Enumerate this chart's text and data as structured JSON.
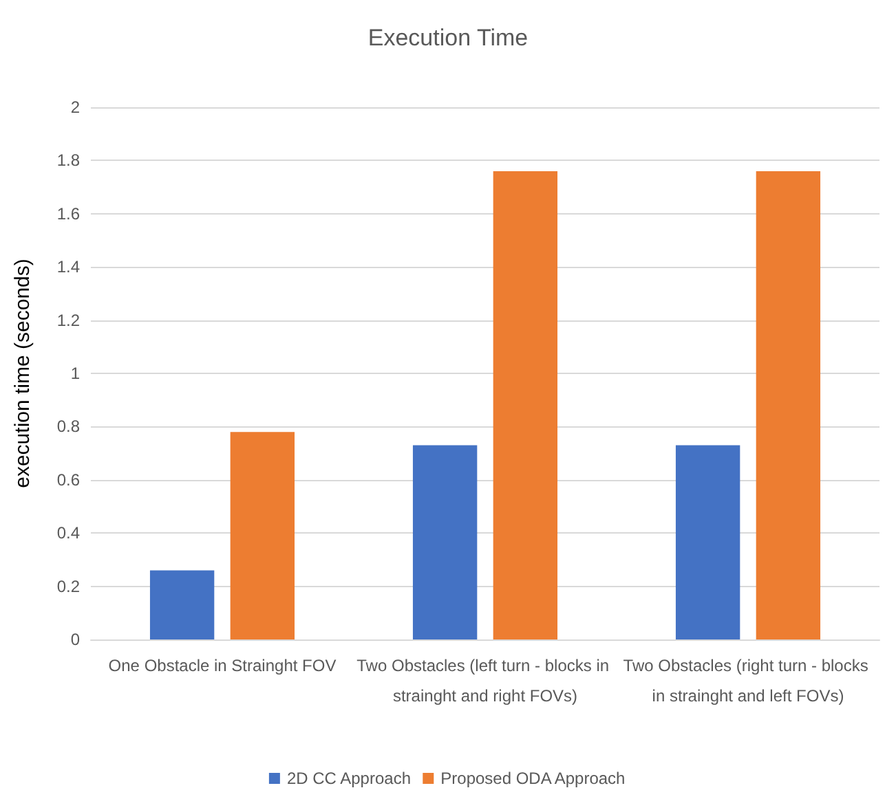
{
  "chart_data": {
    "type": "bar",
    "title": "Execution Time",
    "ylabel": "execution time (seconds)",
    "categories": [
      "One Obstacle in Strainght FOV",
      "Two Obstacles (left turn - blocks in strainght and right FOVs)",
      "Two Obstacles (right turn - blocks in strainght and left FOVs)"
    ],
    "series": [
      {
        "name": "2D CC Approach",
        "color": "#4472c4",
        "values": [
          0.26,
          0.73,
          0.73
        ]
      },
      {
        "name": "Proposed ODA Approach",
        "color": "#ed7d31",
        "values": [
          0.78,
          1.76,
          1.76
        ]
      }
    ],
    "ylim": [
      0,
      2
    ],
    "yticks": [
      0,
      0.2,
      0.4,
      0.6,
      0.8,
      1,
      1.2,
      1.4,
      1.6,
      1.8,
      2
    ],
    "grid": "y",
    "legend": "bottom"
  }
}
